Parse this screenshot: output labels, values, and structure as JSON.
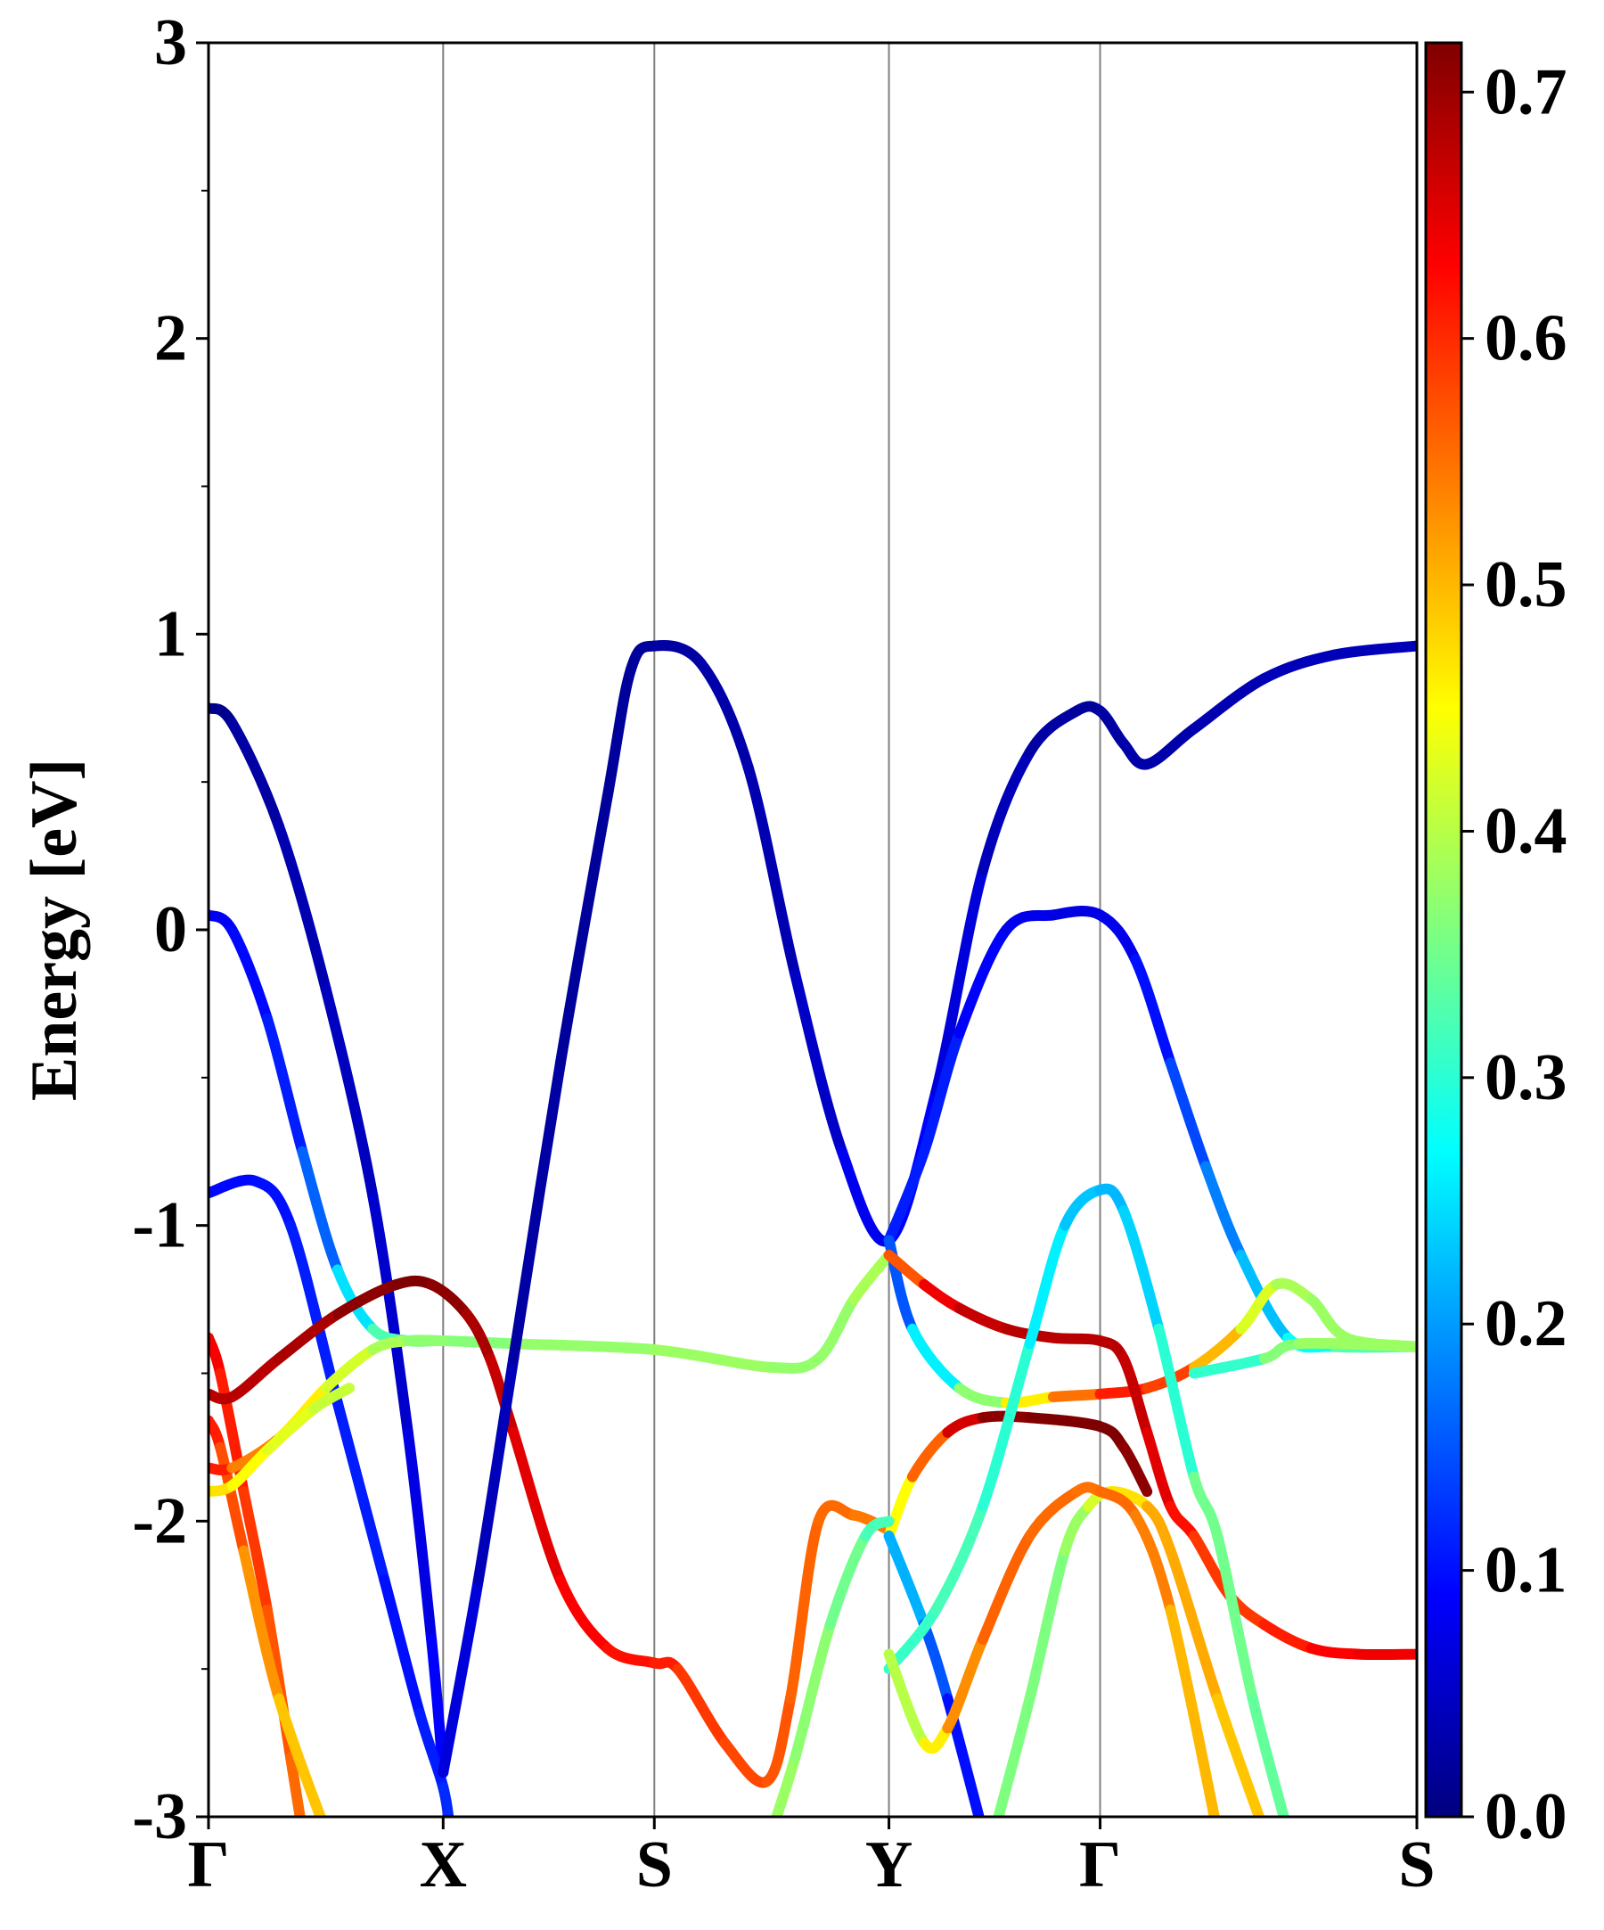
{
  "chart_data": {
    "type": "line",
    "title": "",
    "ylabel": "Energy [eV]",
    "xlabel": "",
    "ylim": [
      -3,
      3
    ],
    "xlim": [
      0,
      5.15
    ],
    "kpoints": [
      {
        "label": "Γ",
        "x": 0.0
      },
      {
        "label": "X",
        "x": 1.0
      },
      {
        "label": "S",
        "x": 1.9
      },
      {
        "label": "Y",
        "x": 2.9
      },
      {
        "label": "Γ",
        "x": 3.8
      },
      {
        "label": "S",
        "x": 5.15
      }
    ],
    "yticks": [
      {
        "value": 3,
        "label": "3"
      },
      {
        "value": 2,
        "label": "2"
      },
      {
        "value": 1,
        "label": "1"
      },
      {
        "value": 0,
        "label": "0"
      },
      {
        "value": -1,
        "label": "-1"
      },
      {
        "value": -2,
        "label": "-2"
      },
      {
        "value": -3,
        "label": "-3"
      }
    ],
    "yminor_ticks": [
      2.5,
      1.5,
      0.5,
      -0.5,
      -1.5,
      -2.5
    ],
    "grid": "vertical lines at high-symmetry points",
    "colorbar": {
      "colormap": "jet",
      "range": [
        0.0,
        0.72
      ],
      "ticks": [
        {
          "value": 0.0,
          "label": "0.0"
        },
        {
          "value": 0.1,
          "label": "0.1"
        },
        {
          "value": 0.2,
          "label": "0.2"
        },
        {
          "value": 0.3,
          "label": "0.3"
        },
        {
          "value": 0.4,
          "label": "0.4"
        },
        {
          "value": 0.5,
          "label": "0.5"
        },
        {
          "value": 0.6,
          "label": "0.6"
        },
        {
          "value": 0.7,
          "label": "0.7"
        }
      ],
      "colors": [
        "#00007f",
        "#0000ff",
        "#007fff",
        "#00ffff",
        "#7fff7f",
        "#ffff00",
        "#ff7f00",
        "#ff0000",
        "#7f0000"
      ]
    },
    "series": [
      {
        "points": [
          [
            0.0,
            0.75,
            0.0
          ],
          [
            0.1,
            0.7,
            0.02
          ],
          [
            0.3,
            0.35,
            0.03
          ],
          [
            0.5,
            -0.2,
            0.04
          ],
          [
            0.7,
            -0.9,
            0.05
          ],
          [
            0.85,
            -1.7,
            0.06
          ],
          [
            0.95,
            -2.4,
            0.08
          ],
          [
            1.0,
            -2.85,
            0.1
          ]
        ]
      },
      {
        "points": [
          [
            0.0,
            0.05,
            0.08
          ],
          [
            0.1,
            0.0,
            0.09
          ],
          [
            0.25,
            -0.3,
            0.1
          ],
          [
            0.4,
            -0.75,
            0.12
          ],
          [
            0.55,
            -1.15,
            0.2
          ],
          [
            0.7,
            -1.35,
            0.3
          ],
          [
            0.85,
            -1.39,
            0.35
          ],
          [
            1.0,
            -1.39,
            0.36
          ],
          [
            1.3,
            -1.4,
            0.37
          ],
          [
            1.9,
            -1.42,
            0.38
          ],
          [
            2.4,
            -1.48,
            0.38
          ],
          [
            2.6,
            -1.45,
            0.37
          ],
          [
            2.75,
            -1.25,
            0.38
          ],
          [
            2.9,
            -1.1,
            0.4
          ]
        ]
      },
      {
        "points": [
          [
            0.0,
            -0.89,
            0.09
          ],
          [
            0.2,
            -0.85,
            0.1
          ],
          [
            0.35,
            -1.0,
            0.1
          ],
          [
            0.55,
            -1.6,
            0.12
          ],
          [
            0.75,
            -2.2,
            0.1
          ],
          [
            0.9,
            -2.65,
            0.1
          ],
          [
            1.0,
            -2.9,
            0.12
          ],
          [
            1.03,
            -3.05,
            0.12
          ]
        ]
      },
      {
        "points": [
          [
            0.0,
            -1.38,
            0.65
          ],
          [
            0.05,
            -1.5,
            0.62
          ],
          [
            0.15,
            -1.9,
            0.6
          ],
          [
            0.25,
            -2.3,
            0.58
          ],
          [
            0.35,
            -2.8,
            0.56
          ],
          [
            0.4,
            -3.05,
            0.55
          ]
        ]
      },
      {
        "points": [
          [
            0.0,
            -1.66,
            0.62
          ],
          [
            0.05,
            -1.75,
            0.6
          ],
          [
            0.15,
            -2.1,
            0.55
          ],
          [
            0.3,
            -2.6,
            0.5
          ],
          [
            0.5,
            -3.05,
            0.48
          ]
        ]
      },
      {
        "points": [
          [
            0.0,
            -1.57,
            0.68
          ],
          [
            0.1,
            -1.58,
            0.68
          ],
          [
            0.3,
            -1.45,
            0.68
          ],
          [
            0.55,
            -1.3,
            0.7
          ],
          [
            0.8,
            -1.2,
            0.72
          ],
          [
            0.95,
            -1.2,
            0.72
          ],
          [
            1.1,
            -1.3,
            0.7
          ],
          [
            1.2,
            -1.45,
            0.68
          ],
          [
            1.3,
            -1.7,
            0.66
          ],
          [
            1.5,
            -2.2,
            0.64
          ],
          [
            1.7,
            -2.43,
            0.62
          ],
          [
            1.9,
            -2.48,
            0.62
          ],
          [
            2.0,
            -2.5,
            0.6
          ],
          [
            2.2,
            -2.75,
            0.58
          ],
          [
            2.38,
            -2.88,
            0.58
          ],
          [
            2.48,
            -2.6,
            0.56
          ],
          [
            2.6,
            -2.0,
            0.56
          ],
          [
            2.75,
            -1.98,
            0.55
          ],
          [
            2.9,
            -2.03,
            0.54
          ]
        ]
      },
      {
        "points": [
          [
            0.0,
            -1.82,
            0.62
          ],
          [
            0.1,
            -1.82,
            0.6
          ],
          [
            0.3,
            -1.72,
            0.48
          ],
          [
            0.5,
            -1.55,
            0.44
          ],
          [
            0.7,
            -1.42,
            0.4
          ],
          [
            0.85,
            -1.39,
            0.38
          ],
          [
            1.0,
            -1.39,
            0.36
          ]
        ]
      },
      {
        "points": [
          [
            0.0,
            -1.9,
            0.48
          ],
          [
            0.1,
            -1.88,
            0.46
          ],
          [
            0.25,
            -1.76,
            0.44
          ],
          [
            0.45,
            -1.62,
            0.42
          ],
          [
            0.6,
            -1.55,
            0.4
          ]
        ]
      },
      {
        "points": [
          [
            1.0,
            -2.85,
            0.08
          ],
          [
            1.15,
            -2.2,
            0.05
          ],
          [
            1.3,
            -1.45,
            0.03
          ],
          [
            1.5,
            -0.45,
            0.02
          ],
          [
            1.7,
            0.45,
            0.02
          ],
          [
            1.8,
            0.88,
            0.02
          ],
          [
            1.9,
            0.96,
            0.02
          ],
          [
            2.1,
            0.9,
            0.03
          ],
          [
            2.3,
            0.55,
            0.03
          ],
          [
            2.5,
            -0.15,
            0.04
          ],
          [
            2.7,
            -0.75,
            0.06
          ],
          [
            2.9,
            -1.05,
            0.1
          ],
          [
            3.1,
            -0.55,
            0.08
          ],
          [
            3.3,
            0.2,
            0.05
          ],
          [
            3.5,
            0.6,
            0.03
          ],
          [
            3.7,
            0.74,
            0.02
          ],
          [
            3.8,
            0.74,
            0.02
          ],
          [
            3.9,
            0.63,
            0.03
          ],
          [
            4.0,
            0.56,
            0.03
          ],
          [
            4.2,
            0.68,
            0.03
          ],
          [
            4.5,
            0.85,
            0.04
          ],
          [
            4.8,
            0.93,
            0.04
          ],
          [
            5.15,
            0.96,
            0.04
          ]
        ]
      },
      {
        "points": [
          [
            2.9,
            -1.05,
            0.1
          ],
          [
            3.05,
            -0.75,
            0.12
          ],
          [
            3.2,
            -0.35,
            0.1
          ],
          [
            3.4,
            0.0,
            0.08
          ],
          [
            3.6,
            0.05,
            0.07
          ],
          [
            3.8,
            0.05,
            0.07
          ],
          [
            3.95,
            -0.1,
            0.08
          ],
          [
            4.1,
            -0.45,
            0.12
          ],
          [
            4.25,
            -0.8,
            0.16
          ],
          [
            4.4,
            -1.1,
            0.2
          ],
          [
            4.6,
            -1.38,
            0.25
          ],
          [
            4.8,
            -1.41,
            0.3
          ],
          [
            5.15,
            -1.41,
            0.36
          ]
        ]
      },
      {
        "points": [
          [
            2.9,
            -1.05,
            0.1
          ],
          [
            3.0,
            -1.35,
            0.2
          ],
          [
            3.2,
            -1.55,
            0.32
          ],
          [
            3.4,
            -1.6,
            0.42
          ],
          [
            3.6,
            -1.58,
            0.5
          ],
          [
            3.8,
            -1.57,
            0.6
          ],
          [
            4.0,
            -1.55,
            0.62
          ],
          [
            4.2,
            -1.48,
            0.55
          ],
          [
            4.4,
            -1.35,
            0.45
          ],
          [
            4.55,
            -1.2,
            0.4
          ],
          [
            4.7,
            -1.25,
            0.38
          ],
          [
            4.85,
            -1.38,
            0.38
          ],
          [
            5.15,
            -1.41,
            0.38
          ]
        ]
      },
      {
        "points": [
          [
            2.9,
            -1.1,
            0.52
          ],
          [
            3.05,
            -1.2,
            0.62
          ],
          [
            3.2,
            -1.28,
            0.66
          ],
          [
            3.4,
            -1.35,
            0.68
          ],
          [
            3.6,
            -1.38,
            0.68
          ],
          [
            3.8,
            -1.39,
            0.68
          ],
          [
            3.9,
            -1.45,
            0.68
          ],
          [
            4.0,
            -1.7,
            0.66
          ],
          [
            4.1,
            -1.95,
            0.64
          ],
          [
            4.2,
            -2.05,
            0.6
          ],
          [
            4.35,
            -2.25,
            0.58
          ],
          [
            4.5,
            -2.35,
            0.6
          ],
          [
            4.7,
            -2.43,
            0.62
          ],
          [
            4.9,
            -2.45,
            0.64
          ],
          [
            5.15,
            -2.45,
            0.64
          ]
        ]
      },
      {
        "points": [
          [
            2.9,
            -2.05,
            0.4
          ],
          [
            3.0,
            -1.85,
            0.5
          ],
          [
            3.15,
            -1.7,
            0.62
          ],
          [
            3.3,
            -1.65,
            0.7
          ],
          [
            3.5,
            -1.65,
            0.72
          ],
          [
            3.8,
            -1.68,
            0.72
          ],
          [
            3.9,
            -1.75,
            0.72
          ],
          [
            4.0,
            -1.9,
            0.7
          ]
        ]
      },
      {
        "points": [
          [
            3.35,
            -3.05,
            0.36
          ],
          [
            3.5,
            -2.6,
            0.36
          ],
          [
            3.65,
            -2.1,
            0.36
          ],
          [
            3.75,
            -1.95,
            0.4
          ],
          [
            3.85,
            -1.9,
            0.44
          ],
          [
            4.0,
            -1.95,
            0.5
          ],
          [
            4.1,
            -2.1,
            0.52
          ],
          [
            4.3,
            -2.6,
            0.5
          ],
          [
            4.5,
            -3.05,
            0.48
          ]
        ]
      },
      {
        "points": [
          [
            2.9,
            -2.05,
            0.25
          ],
          [
            3.05,
            -2.35,
            0.18
          ],
          [
            3.15,
            -2.6,
            0.12
          ],
          [
            3.3,
            -3.05,
            0.08
          ]
        ]
      },
      {
        "points": [
          [
            2.9,
            -2.5,
            0.3
          ],
          [
            3.1,
            -2.3,
            0.32
          ],
          [
            3.3,
            -1.95,
            0.32
          ],
          [
            3.5,
            -1.4,
            0.28
          ],
          [
            3.65,
            -1.0,
            0.24
          ],
          [
            3.8,
            -0.88,
            0.22
          ],
          [
            3.9,
            -0.95,
            0.22
          ],
          [
            4.05,
            -1.35,
            0.26
          ],
          [
            4.2,
            -1.85,
            0.34
          ],
          [
            4.3,
            -2.05,
            0.36
          ],
          [
            4.45,
            -2.6,
            0.34
          ],
          [
            4.6,
            -3.05,
            0.34
          ]
        ]
      },
      {
        "points": [
          [
            2.4,
            -3.05,
            0.38
          ],
          [
            2.5,
            -2.8,
            0.38
          ],
          [
            2.65,
            -2.35,
            0.36
          ],
          [
            2.8,
            -2.05,
            0.34
          ],
          [
            2.9,
            -2.0,
            0.3
          ]
        ]
      },
      {
        "points": [
          [
            2.9,
            -2.45,
            0.38
          ],
          [
            3.05,
            -2.75,
            0.42
          ],
          [
            3.15,
            -2.7,
            0.5
          ],
          [
            3.3,
            -2.4,
            0.56
          ],
          [
            3.5,
            -2.05,
            0.56
          ],
          [
            3.7,
            -1.9,
            0.55
          ],
          [
            3.8,
            -1.9,
            0.55
          ],
          [
            3.95,
            -1.98,
            0.56
          ],
          [
            4.1,
            -2.3,
            0.52
          ],
          [
            4.3,
            -3.05,
            0.48
          ]
        ]
      },
      {
        "points": [
          [
            4.2,
            -1.5,
            0.26
          ],
          [
            4.5,
            -1.45,
            0.35
          ],
          [
            4.65,
            -1.4,
            0.38
          ],
          [
            5.15,
            -1.41,
            0.38
          ]
        ]
      }
    ]
  }
}
